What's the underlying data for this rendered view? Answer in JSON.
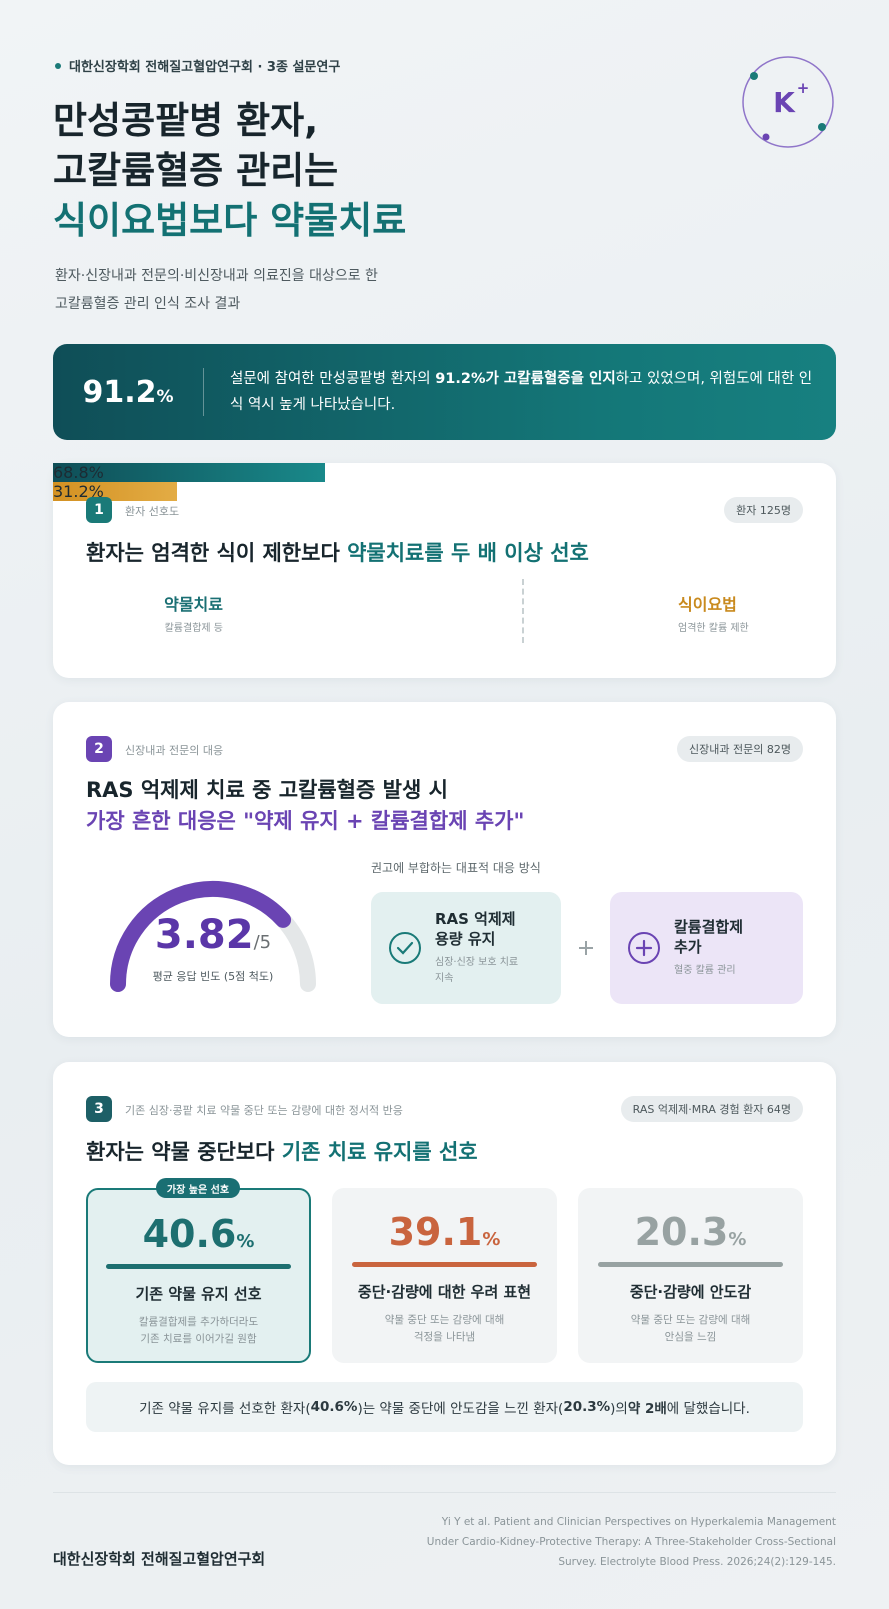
{
  "header": {
    "org_line": "대한신장학회 전해질고혈압연구회 · 3종 설문연구",
    "badge": "K",
    "badge_sup": "+",
    "title_lines": [
      "만성콩팥병 환자,",
      "고칼륨혈증 관리는",
      "식이요법보다 약물치료"
    ],
    "subtitle_lines": [
      "환자·신장내과 전문의·비신장내과 의료진을 대상으로 한",
      "고칼륨혈증 관리 인식 조사 결과"
    ]
  },
  "highlight": {
    "value": 91.2,
    "unit": "%",
    "text": [
      {
        "t": "설문에 참여한 만성콩팥병 환자의 "
      },
      {
        "t": "91.2%가 고칼륨혈증을 인지",
        "bold": true
      },
      {
        "t": "하고 있었으며, 위험도에 대한 인식 역시 높게 나타났습니다."
      }
    ]
  },
  "section1": {
    "number": "1",
    "label": "환자 선호도",
    "tag": "환자 125명",
    "heading": [
      {
        "t": "환자는 엄격한 식이 제한보다 "
      },
      {
        "t": "약물치료를 두 배 이상 선호",
        "accent": true
      }
    ],
    "bars": [
      {
        "name": "약물치료",
        "sub": "칼륨결합제 등",
        "value": 68.8,
        "value_label": "68.8%"
      },
      {
        "name": "식이요법",
        "sub": "엄격한 칼륨 제한",
        "value": 31.2,
        "value_label": "31.2%"
      }
    ]
  },
  "section2": {
    "number": "2",
    "label": "신장내과 전문의 대응",
    "tag": "신장내과 전문의 82명",
    "heading_lines": [
      "RAS 억제제 치료 중 고칼륨혈증 발생 시",
      "가장 흔한 대응은 \"약제 유지 + 칼륨결합제 추가\""
    ],
    "gauge": {
      "score": 3.82,
      "max": 5,
      "max_label": "/5",
      "caption": "평균 응답 빈도 (5점 척도)"
    },
    "options_title": "권고에 부합하는 대표적 대응 방식",
    "options": [
      {
        "title_lines": [
          "RAS 억제제",
          "용량 유지"
        ],
        "sub_lines": [
          "심장·신장 보호 치료",
          "지속"
        ]
      },
      {
        "title_lines": [
          "칼륨결합제",
          "추가"
        ],
        "sub_lines": [
          "혈중 칼륨 관리"
        ]
      }
    ]
  },
  "section3": {
    "number": "3",
    "label": "기존 심장·콩팥 치료 약물 중단 또는 감량에 대한 정서적 반응",
    "tag": "RAS 억제제·MRA 경험 환자 64명",
    "heading": [
      {
        "t": "환자는 약물 중단보다 "
      },
      {
        "t": "기존 치료 유지를 선호",
        "accent": true
      }
    ],
    "cards": [
      {
        "badge": "가장 높은 선호",
        "value": 40.6,
        "unit": "%",
        "title": "기존 약물 유지 선호",
        "desc_lines": [
          "칼륨결합제를 추가하더라도",
          "기존 치료를 이어가길 원함"
        ],
        "color": "#1d6f70"
      },
      {
        "value": 39.1,
        "unit": "%",
        "title": "중단·감량에 대한 우려 표현",
        "desc_lines": [
          "약물 중단 또는 감량에 대해",
          "걱정을 나타냄"
        ],
        "color": "#c9643e"
      },
      {
        "value": 20.3,
        "unit": "%",
        "title": "중단·감량에 안도감",
        "desc_lines": [
          "약물 중단 또는 감량에 대해",
          "안심을 느낌"
        ],
        "color": "#98a2a2"
      }
    ],
    "summary": [
      {
        "t": "기존 약물 유지를 선호한 환자("
      },
      {
        "t": "40.6%",
        "bold": true
      },
      {
        "t": ")는 약물 중단에 안도감을 느낀 환자("
      },
      {
        "t": "20.3%",
        "bold": true
      },
      {
        "t": ")의 "
      },
      {
        "t": "약 2배",
        "bold": true
      },
      {
        "t": "에 달했습니다."
      }
    ]
  },
  "footer": {
    "org": "대한신장학회 전해질고혈압연구회",
    "citation_lines": [
      "Yi Y et al. Patient and Clinician Perspectives on Hyperkalemia Management",
      "Under Cardio-Kidney-Protective Therapy: A Three-Stakeholder Cross-Sectional",
      "Survey. Electrolyte Blood Press. 2026;24(2):129-145."
    ]
  }
}
